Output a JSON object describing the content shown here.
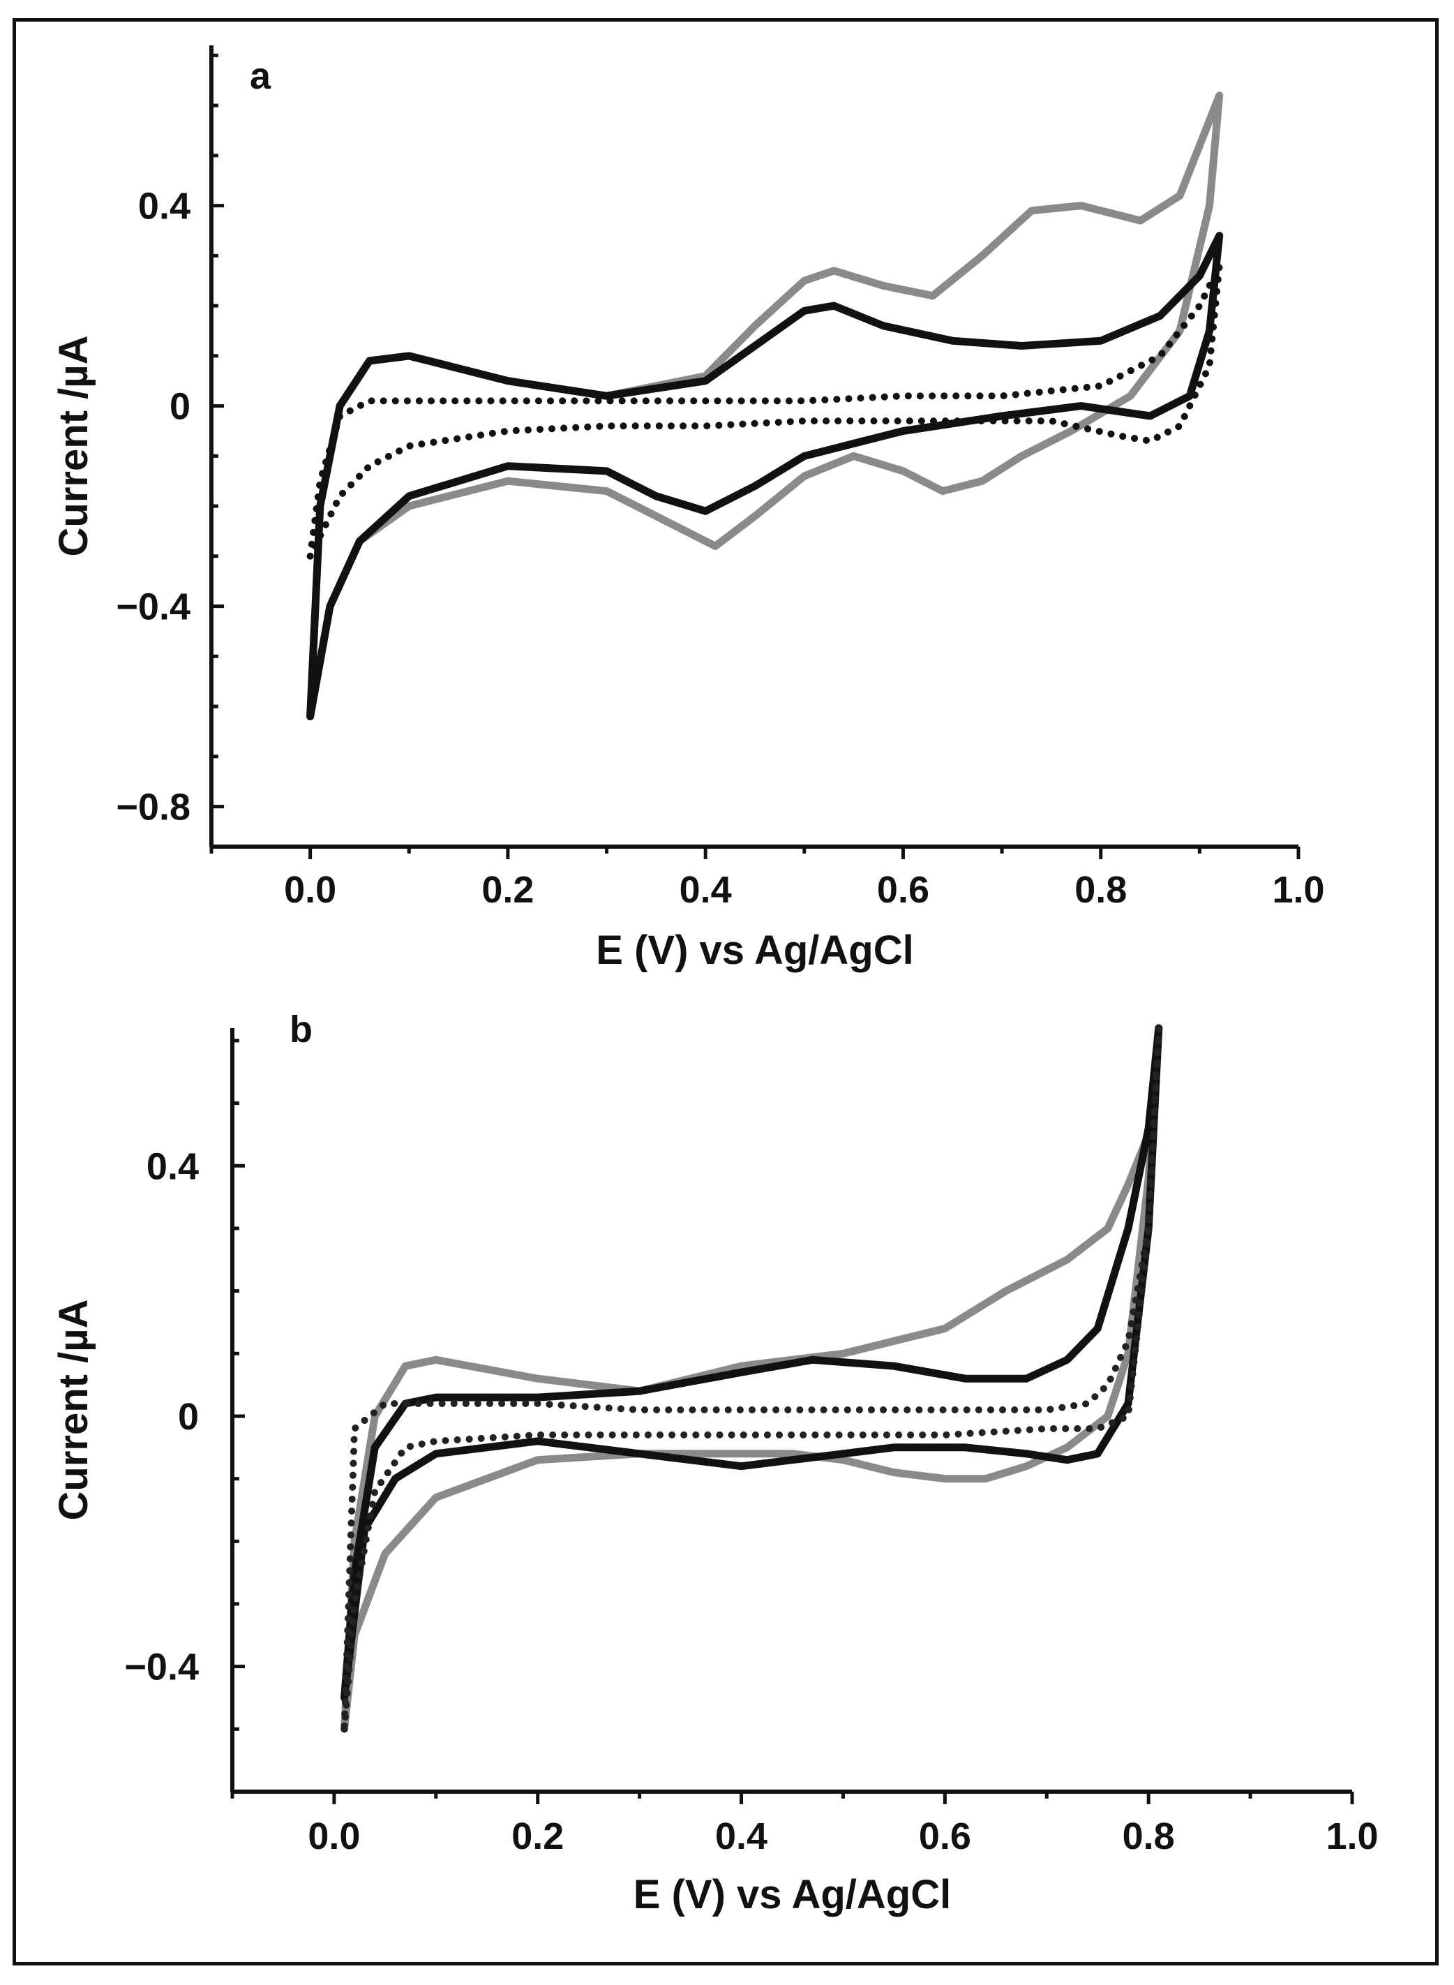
{
  "chart_data": [
    {
      "panel": "a",
      "type": "line",
      "xlabel": "E (V) vs Ag/AgCl",
      "ylabel": "Current /µA",
      "xlim": [
        -0.1,
        1.0
      ],
      "ylim": [
        -0.88,
        0.72
      ],
      "xticks": [
        0.0,
        0.2,
        0.4,
        0.6,
        0.8,
        1.0
      ],
      "xtick_labels": [
        "0.0",
        "0.2",
        "0.4",
        "0.6",
        "0.8",
        "1.0"
      ],
      "yticks": [
        -0.8,
        -0.4,
        0,
        0.4
      ],
      "ytick_labels": [
        "−0.8",
        "−0.4",
        "0",
        "0.4"
      ],
      "grid": false,
      "series": [
        {
          "name": "gray solid",
          "color": "#8a8a8a",
          "style": "solid",
          "x": [
            0.0,
            0.01,
            0.03,
            0.06,
            0.1,
            0.2,
            0.3,
            0.4,
            0.45,
            0.5,
            0.53,
            0.58,
            0.63,
            0.68,
            0.73,
            0.78,
            0.84,
            0.88,
            0.92,
            0.91,
            0.88,
            0.83,
            0.77,
            0.72,
            0.68,
            0.64,
            0.6,
            0.55,
            0.5,
            0.45,
            0.41,
            0.37,
            0.3,
            0.2,
            0.1,
            0.05,
            0.02,
            0.0
          ],
          "y": [
            -0.62,
            -0.2,
            0.0,
            0.09,
            0.1,
            0.05,
            0.02,
            0.06,
            0.16,
            0.25,
            0.27,
            0.24,
            0.22,
            0.3,
            0.39,
            0.4,
            0.37,
            0.42,
            0.62,
            0.4,
            0.15,
            0.02,
            -0.05,
            -0.1,
            -0.15,
            -0.17,
            -0.13,
            -0.1,
            -0.14,
            -0.22,
            -0.28,
            -0.24,
            -0.17,
            -0.15,
            -0.2,
            -0.27,
            -0.4,
            -0.62
          ]
        },
        {
          "name": "black solid",
          "color": "#111111",
          "style": "solid",
          "x": [
            0.0,
            0.01,
            0.03,
            0.06,
            0.1,
            0.2,
            0.3,
            0.4,
            0.45,
            0.5,
            0.53,
            0.58,
            0.65,
            0.72,
            0.8,
            0.86,
            0.9,
            0.92,
            0.91,
            0.89,
            0.85,
            0.78,
            0.7,
            0.6,
            0.5,
            0.45,
            0.4,
            0.35,
            0.3,
            0.2,
            0.1,
            0.05,
            0.02,
            0.0
          ],
          "y": [
            -0.62,
            -0.2,
            0.0,
            0.09,
            0.1,
            0.05,
            0.02,
            0.05,
            0.12,
            0.19,
            0.2,
            0.16,
            0.13,
            0.12,
            0.13,
            0.18,
            0.26,
            0.34,
            0.15,
            0.02,
            -0.02,
            0.0,
            -0.02,
            -0.05,
            -0.1,
            -0.16,
            -0.21,
            -0.18,
            -0.13,
            -0.12,
            -0.18,
            -0.27,
            -0.4,
            -0.62
          ]
        },
        {
          "name": "black dotted",
          "color": "#111111",
          "style": "dotted",
          "x": [
            0.0,
            0.01,
            0.03,
            0.06,
            0.1,
            0.2,
            0.3,
            0.4,
            0.5,
            0.6,
            0.7,
            0.8,
            0.86,
            0.9,
            0.92,
            0.91,
            0.88,
            0.85,
            0.82,
            0.75,
            0.6,
            0.5,
            0.4,
            0.3,
            0.2,
            0.1,
            0.06,
            0.03,
            0.0
          ],
          "y": [
            -0.3,
            -0.15,
            -0.02,
            0.01,
            0.01,
            0.01,
            0.01,
            0.01,
            0.01,
            0.02,
            0.02,
            0.04,
            0.1,
            0.2,
            0.28,
            0.08,
            -0.04,
            -0.07,
            -0.06,
            -0.03,
            -0.03,
            -0.03,
            -0.04,
            -0.04,
            -0.05,
            -0.08,
            -0.12,
            -0.18,
            -0.3
          ]
        }
      ]
    },
    {
      "panel": "b",
      "type": "line",
      "xlabel": "E (V) vs Ag/AgCl",
      "ylabel": "Current /µA",
      "xlim": [
        -0.1,
        1.0
      ],
      "ylim": [
        -0.6,
        0.62
      ],
      "xticks": [
        0.0,
        0.2,
        0.4,
        0.6,
        0.8,
        1.0
      ],
      "xtick_labels": [
        "0.0",
        "0.2",
        "0.4",
        "0.6",
        "0.8",
        "1.0"
      ],
      "yticks": [
        -0.4,
        0,
        0.4
      ],
      "ytick_labels": [
        "−0.4",
        "0",
        "0.4"
      ],
      "grid": false,
      "series": [
        {
          "name": "gray solid",
          "color": "#8a8a8a",
          "style": "solid",
          "x": [
            0.01,
            0.02,
            0.04,
            0.07,
            0.1,
            0.2,
            0.3,
            0.4,
            0.5,
            0.6,
            0.66,
            0.72,
            0.76,
            0.78,
            0.8,
            0.81,
            0.8,
            0.78,
            0.76,
            0.72,
            0.68,
            0.64,
            0.6,
            0.55,
            0.5,
            0.45,
            0.4,
            0.3,
            0.2,
            0.1,
            0.05,
            0.02,
            0.01
          ],
          "y": [
            -0.5,
            -0.2,
            0.0,
            0.08,
            0.09,
            0.06,
            0.04,
            0.08,
            0.1,
            0.14,
            0.2,
            0.25,
            0.3,
            0.37,
            0.45,
            0.62,
            0.38,
            0.1,
            0.0,
            -0.05,
            -0.08,
            -0.1,
            -0.1,
            -0.09,
            -0.07,
            -0.06,
            -0.06,
            -0.06,
            -0.07,
            -0.13,
            -0.22,
            -0.35,
            -0.5
          ]
        },
        {
          "name": "black solid",
          "color": "#111111",
          "style": "solid",
          "x": [
            0.01,
            0.02,
            0.04,
            0.07,
            0.1,
            0.2,
            0.3,
            0.4,
            0.47,
            0.55,
            0.62,
            0.68,
            0.72,
            0.75,
            0.78,
            0.8,
            0.81,
            0.8,
            0.78,
            0.75,
            0.72,
            0.68,
            0.62,
            0.55,
            0.5,
            0.45,
            0.4,
            0.3,
            0.2,
            0.1,
            0.06,
            0.03,
            0.01
          ],
          "y": [
            -0.45,
            -0.25,
            -0.05,
            0.02,
            0.03,
            0.03,
            0.04,
            0.07,
            0.09,
            0.08,
            0.06,
            0.06,
            0.09,
            0.14,
            0.3,
            0.46,
            0.62,
            0.3,
            0.02,
            -0.06,
            -0.07,
            -0.06,
            -0.05,
            -0.05,
            -0.06,
            -0.07,
            -0.08,
            -0.06,
            -0.04,
            -0.06,
            -0.1,
            -0.18,
            -0.45
          ]
        },
        {
          "name": "black dotted",
          "color": "#222222",
          "style": "dotted",
          "x": [
            0.01,
            0.02,
            0.04,
            0.07,
            0.1,
            0.2,
            0.3,
            0.4,
            0.5,
            0.6,
            0.7,
            0.75,
            0.78,
            0.8,
            0.81,
            0.8,
            0.78,
            0.76,
            0.74,
            0.7,
            0.6,
            0.5,
            0.4,
            0.3,
            0.2,
            0.1,
            0.05,
            0.02,
            0.01
          ],
          "y": [
            -0.5,
            -0.3,
            -0.12,
            -0.05,
            -0.04,
            -0.03,
            -0.03,
            -0.03,
            -0.03,
            -0.03,
            -0.02,
            -0.02,
            0.0,
            0.3,
            0.62,
            0.3,
            0.12,
            0.05,
            0.02,
            0.01,
            0.01,
            0.01,
            0.01,
            0.01,
            0.02,
            0.02,
            0.02,
            -0.02,
            -0.5
          ]
        }
      ]
    }
  ]
}
